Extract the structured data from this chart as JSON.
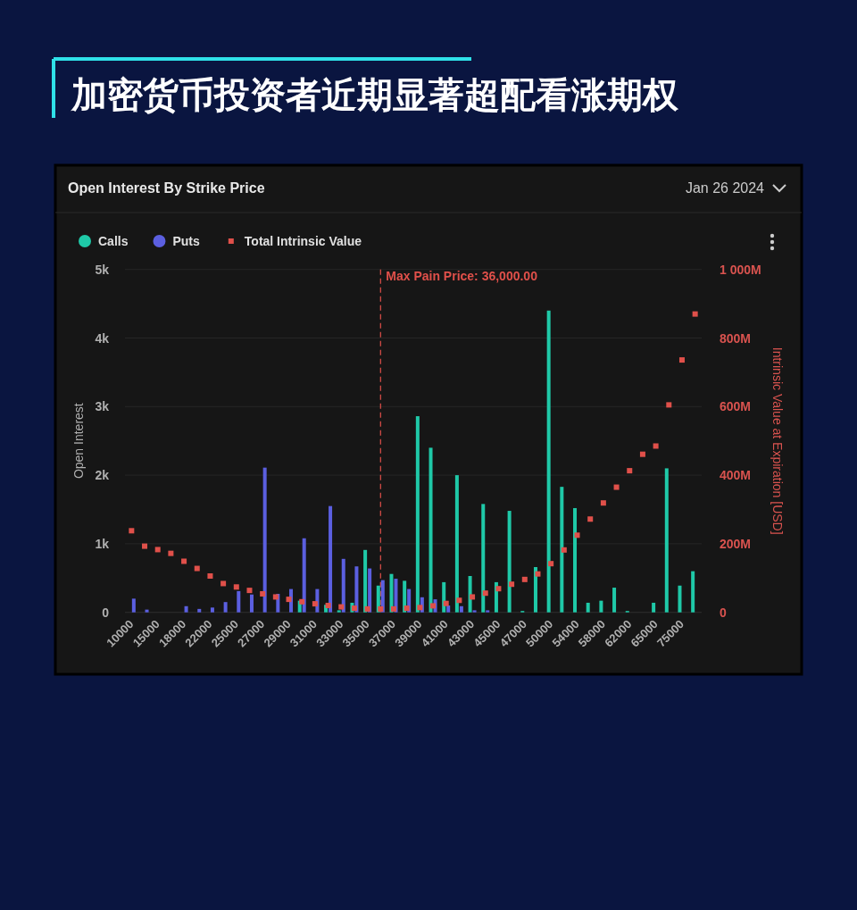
{
  "chart_data": {
    "type": "bar",
    "title": "加密货币投资者近期显著超配看涨期权",
    "subtitle": "Open Interest By Strike Price",
    "annotations": [
      "Jan 26 2024",
      "Max Pain Price: 36,000.00"
    ],
    "ylabel": "Open Interest",
    "y2label": "Intrinsic Value at Expiration [USD]",
    "categories": [
      "10000",
      null,
      "15000",
      null,
      "18000",
      null,
      "22000",
      null,
      "25000",
      null,
      "27000",
      null,
      "29000",
      null,
      "31000",
      null,
      "33000",
      null,
      "35000",
      null,
      "37000",
      null,
      "39000",
      null,
      "41000",
      null,
      "43000",
      null,
      "45000",
      null,
      "47000",
      null,
      "50000",
      null,
      "54000",
      null,
      "58000",
      null,
      "62000",
      null,
      "65000",
      null,
      "75000",
      null
    ],
    "series": [
      {
        "name": "Calls",
        "color": "#1fc9a8",
        "values": [
          0,
          0,
          0,
          0,
          0,
          0,
          0,
          0,
          0,
          0,
          0,
          0,
          0,
          170,
          0,
          110,
          30,
          140,
          910,
          390,
          560,
          460,
          2860,
          2400,
          440,
          2000,
          530,
          1580,
          440,
          1480,
          20,
          660,
          4400,
          1830,
          1520,
          140,
          170,
          360,
          20,
          0,
          140,
          2100,
          390,
          600
        ]
      },
      {
        "name": "Puts",
        "color": "#5b5fe0",
        "values": [
          200,
          40,
          0,
          0,
          90,
          50,
          70,
          150,
          310,
          260,
          2110,
          270,
          340,
          1080,
          340,
          1550,
          780,
          670,
          640,
          470,
          490,
          340,
          220,
          190,
          100,
          90,
          30,
          30,
          0,
          0,
          0,
          0,
          0,
          0,
          0,
          0,
          0,
          0,
          0,
          0,
          0,
          0,
          0,
          0
        ]
      },
      {
        "name": "Total Intrinsic Value",
        "type": "scatter",
        "axis": "y2",
        "color": "#e0504a",
        "values": [
          238000000,
          193000000,
          183000000,
          172000000,
          149000000,
          128000000,
          106000000,
          84000000,
          74000000,
          64000000,
          54000000,
          45000000,
          38000000,
          31000000,
          25000000,
          20000000,
          16000000,
          12000000,
          10000000,
          10000000,
          10000000,
          12000000,
          14000000,
          19000000,
          26000000,
          35000000,
          45000000,
          56000000,
          69000000,
          82000000,
          96000000,
          112000000,
          142000000,
          182000000,
          225000000,
          272000000,
          319000000,
          365000000,
          413000000,
          461000000,
          485000000,
          605000000,
          736000000,
          870000000
        ]
      }
    ],
    "ylim": [
      0,
      5000
    ],
    "yticks": [
      0,
      {
        "value": 1000,
        "label": "1k"
      },
      {
        "value": 2000,
        "label": "2k"
      },
      {
        "value": 3000,
        "label": "3k"
      },
      {
        "value": 4000,
        "label": "4k"
      },
      {
        "value": 5000,
        "label": "5k"
      }
    ],
    "y2lim": [
      0,
      1000000000
    ],
    "y2ticks": [
      0,
      {
        "value": 200000000,
        "label": "200M"
      },
      {
        "value": 400000000,
        "label": "400M"
      },
      {
        "value": 600000000,
        "label": "600M"
      },
      {
        "value": 800000000,
        "label": "800M"
      },
      {
        "value": 1000000000,
        "label": "1 000M"
      }
    ],
    "grid": "y",
    "legend": "top left",
    "marker": "square"
  }
}
